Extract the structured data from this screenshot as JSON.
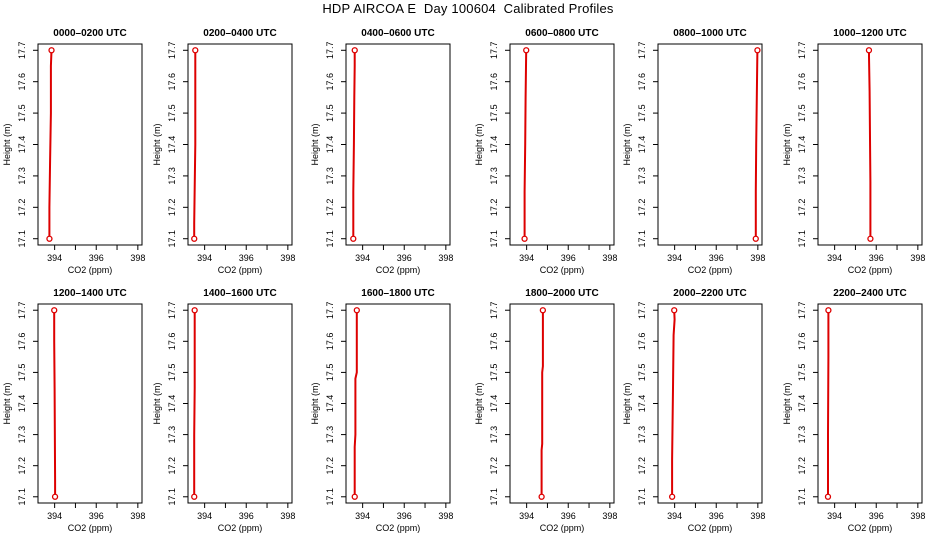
{
  "figure": {
    "title": "HDP AIRCOA E  Day 100604  Calibrated Profiles",
    "colors": {
      "profile": "#dd0000",
      "axis": "#000000"
    }
  },
  "chart_data": [
    {
      "type": "line",
      "title": "0000–0200 UTC",
      "xlabel": "CO2 (ppm)",
      "ylabel": "Height (m)",
      "xlim": [
        393.2,
        398.2
      ],
      "ylim": [
        17.08,
        17.72
      ],
      "xticks": [
        "394",
        "396",
        "398"
      ],
      "yticks": [
        "17.1",
        "17.2",
        "17.3",
        "17.4",
        "17.5",
        "17.6",
        "17.7"
      ],
      "series": [
        {
          "x": [
            393.75,
            393.75,
            393.78,
            393.82,
            393.82,
            393.85
          ],
          "y": [
            17.1,
            17.2,
            17.35,
            17.5,
            17.65,
            17.7
          ]
        }
      ]
    },
    {
      "type": "line",
      "title": "0200–0400 UTC",
      "xlabel": "CO2 (ppm)",
      "ylabel": "Height (m)",
      "xlim": [
        393.2,
        398.2
      ],
      "ylim": [
        17.08,
        17.72
      ],
      "xticks": [
        "394",
        "396",
        "398"
      ],
      "yticks": [
        "17.1",
        "17.2",
        "17.3",
        "17.4",
        "17.5",
        "17.6",
        "17.7"
      ],
      "series": [
        {
          "x": [
            393.5,
            393.5,
            393.55,
            393.55,
            393.55
          ],
          "y": [
            17.1,
            17.15,
            17.4,
            17.6,
            17.7
          ]
        }
      ]
    },
    {
      "type": "line",
      "title": "0400–0600 UTC",
      "xlabel": "CO2 (ppm)",
      "ylabel": "Height (m)",
      "xlim": [
        393.2,
        398.2
      ],
      "ylim": [
        17.08,
        17.72
      ],
      "xticks": [
        "394",
        "396",
        "398"
      ],
      "yticks": [
        "17.1",
        "17.2",
        "17.3",
        "17.4",
        "17.5",
        "17.6",
        "17.7"
      ],
      "series": [
        {
          "x": [
            393.55,
            393.55,
            393.58,
            393.6,
            393.62,
            393.62
          ],
          "y": [
            17.1,
            17.25,
            17.4,
            17.55,
            17.65,
            17.7
          ]
        }
      ]
    },
    {
      "type": "line",
      "title": "0600–0800 UTC",
      "xlabel": "CO2 (ppm)",
      "ylabel": "Height (m)",
      "xlim": [
        393.2,
        398.2
      ],
      "ylim": [
        17.08,
        17.72
      ],
      "xticks": [
        "394",
        "396",
        "398"
      ],
      "yticks": [
        "17.1",
        "17.2",
        "17.3",
        "17.4",
        "17.5",
        "17.6",
        "17.7"
      ],
      "series": [
        {
          "x": [
            393.9,
            393.9,
            393.93,
            393.95,
            393.98
          ],
          "y": [
            17.1,
            17.25,
            17.4,
            17.55,
            17.7
          ]
        }
      ]
    },
    {
      "type": "line",
      "title": "0800–1000 UTC",
      "xlabel": "CO2 (ppm)",
      "ylabel": "Height (m)",
      "xlim": [
        393.2,
        398.2
      ],
      "ylim": [
        17.08,
        17.72
      ],
      "xticks": [
        "394",
        "396",
        "398"
      ],
      "yticks": [
        "17.1",
        "17.2",
        "17.3",
        "17.4",
        "17.5",
        "17.6",
        "17.7"
      ],
      "series": [
        {
          "x": [
            397.9,
            397.9,
            397.92,
            397.95,
            397.98
          ],
          "y": [
            17.1,
            17.25,
            17.4,
            17.55,
            17.7
          ]
        }
      ]
    },
    {
      "type": "line",
      "title": "1000–1200 UTC",
      "xlabel": "CO2 (ppm)",
      "ylabel": "Height (m)",
      "xlim": [
        393.2,
        398.2
      ],
      "ylim": [
        17.08,
        17.72
      ],
      "xticks": [
        "394",
        "396",
        "398"
      ],
      "yticks": [
        "17.1",
        "17.2",
        "17.3",
        "17.4",
        "17.5",
        "17.6",
        "17.7"
      ],
      "series": [
        {
          "x": [
            395.72,
            395.72,
            395.7,
            395.68,
            395.65,
            395.65
          ],
          "y": [
            17.1,
            17.28,
            17.42,
            17.57,
            17.68,
            17.7
          ]
        }
      ]
    },
    {
      "type": "line",
      "title": "1200–1400 UTC",
      "xlabel": "CO2 (ppm)",
      "ylabel": "Height (m)",
      "xlim": [
        393.2,
        398.2
      ],
      "ylim": [
        17.08,
        17.72
      ],
      "xticks": [
        "394",
        "396",
        "398"
      ],
      "yticks": [
        "17.1",
        "17.2",
        "17.3",
        "17.4",
        "17.5",
        "17.6",
        "17.7"
      ],
      "series": [
        {
          "x": [
            394.02,
            394.02,
            394.0,
            393.98,
            393.98
          ],
          "y": [
            17.1,
            17.15,
            17.45,
            17.6,
            17.7
          ]
        }
      ]
    },
    {
      "type": "line",
      "title": "1400–1600 UTC",
      "xlabel": "CO2 (ppm)",
      "ylabel": "Height (m)",
      "xlim": [
        393.2,
        398.2
      ],
      "ylim": [
        17.08,
        17.72
      ],
      "xticks": [
        "394",
        "396",
        "398"
      ],
      "yticks": [
        "17.1",
        "17.2",
        "17.3",
        "17.4",
        "17.5",
        "17.6",
        "17.7"
      ],
      "series": [
        {
          "x": [
            393.5,
            393.5,
            393.52,
            393.52,
            393.52
          ],
          "y": [
            17.1,
            17.3,
            17.45,
            17.6,
            17.7
          ]
        }
      ]
    },
    {
      "type": "line",
      "title": "1600–1800 UTC",
      "xlabel": "CO2 (ppm)",
      "ylabel": "Height (m)",
      "xlim": [
        393.2,
        398.2
      ],
      "ylim": [
        17.08,
        17.72
      ],
      "xticks": [
        "394",
        "396",
        "398"
      ],
      "yticks": [
        "17.1",
        "17.2",
        "17.3",
        "17.4",
        "17.5",
        "17.6",
        "17.7"
      ],
      "series": [
        {
          "x": [
            393.62,
            393.62,
            393.65,
            393.65,
            393.72,
            393.72,
            393.72
          ],
          "y": [
            17.1,
            17.26,
            17.3,
            17.48,
            17.5,
            17.62,
            17.7
          ]
        }
      ]
    },
    {
      "type": "line",
      "title": "1800–2000 UTC",
      "xlabel": "CO2 (ppm)",
      "ylabel": "Height (m)",
      "xlim": [
        393.2,
        398.2
      ],
      "ylim": [
        17.08,
        17.72
      ],
      "xticks": [
        "394",
        "396",
        "398"
      ],
      "yticks": [
        "17.1",
        "17.2",
        "17.3",
        "17.4",
        "17.5",
        "17.6",
        "17.7"
      ],
      "series": [
        {
          "x": [
            394.72,
            394.72,
            394.75,
            394.75,
            394.78,
            394.78
          ],
          "y": [
            17.1,
            17.25,
            17.27,
            17.5,
            17.52,
            17.7
          ]
        }
      ]
    },
    {
      "type": "line",
      "title": "2000–2200 UTC",
      "xlabel": "CO2 (ppm)",
      "ylabel": "Height (m)",
      "xlim": [
        393.2,
        398.2
      ],
      "ylim": [
        17.08,
        17.72
      ],
      "xticks": [
        "394",
        "396",
        "398"
      ],
      "yticks": [
        "17.1",
        "17.2",
        "17.3",
        "17.4",
        "17.5",
        "17.6",
        "17.7"
      ],
      "series": [
        {
          "x": [
            393.88,
            393.88,
            393.92,
            393.95,
            394.0,
            393.98
          ],
          "y": [
            17.1,
            17.22,
            17.45,
            17.62,
            17.67,
            17.7
          ]
        }
      ]
    },
    {
      "type": "line",
      "title": "2200–2400 UTC",
      "xlabel": "CO2 (ppm)",
      "ylabel": "Height (m)",
      "xlim": [
        393.2,
        398.2
      ],
      "ylim": [
        17.08,
        17.72
      ],
      "xticks": [
        "394",
        "396",
        "398"
      ],
      "yticks": [
        "17.1",
        "17.2",
        "17.3",
        "17.4",
        "17.5",
        "17.6",
        "17.7"
      ],
      "series": [
        {
          "x": [
            393.68,
            393.68,
            393.7,
            393.7
          ],
          "y": [
            17.1,
            17.3,
            17.55,
            17.7
          ]
        }
      ]
    }
  ]
}
